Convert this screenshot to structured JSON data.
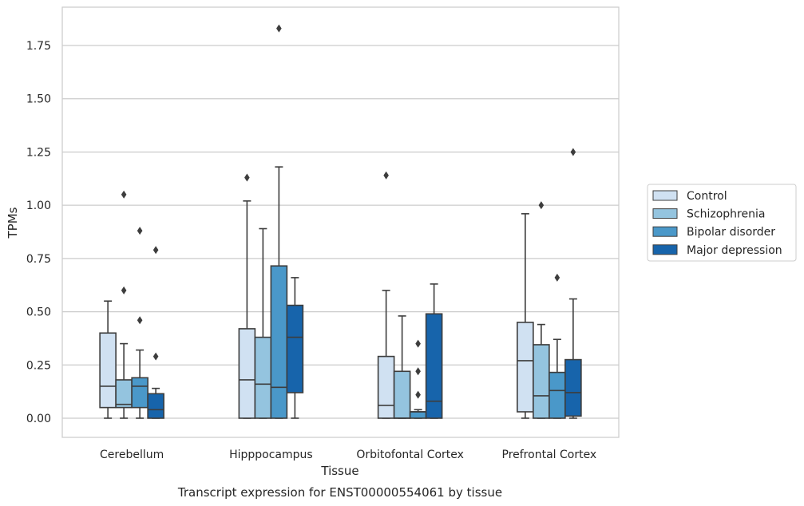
{
  "chart_data": {
    "type": "boxplot",
    "caption": "Transcript expression for ENST00000554061 by tissue",
    "xlabel": "Tissue",
    "ylabel": "TPMs",
    "ylim": [
      -0.09,
      1.93
    ],
    "yticks": [
      0.0,
      0.25,
      0.5,
      0.75,
      1.0,
      1.25,
      1.5,
      1.75
    ],
    "ytick_labels": [
      "0.00",
      "0.25",
      "0.50",
      "0.75",
      "1.00",
      "1.25",
      "1.50",
      "1.75"
    ],
    "grid": "horizontal",
    "legend_position": "right",
    "categories": [
      "Cerebellum",
      "Hipppocampus",
      "Orbitofontal Cortex",
      "Prefrontal Cortex"
    ],
    "series": [
      {
        "name": "Control",
        "color": "#d0e1f2",
        "boxes": [
          {
            "whislo": 0.0,
            "q1": 0.05,
            "med": 0.15,
            "q3": 0.4,
            "whishi": 0.55,
            "fliers": []
          },
          {
            "whislo": 0.0,
            "q1": 0.0,
            "med": 0.18,
            "q3": 0.42,
            "whishi": 1.02,
            "fliers": [
              1.13
            ]
          },
          {
            "whislo": 0.0,
            "q1": 0.0,
            "med": 0.06,
            "q3": 0.29,
            "whishi": 0.6,
            "fliers": [
              1.14
            ]
          },
          {
            "whislo": 0.0,
            "q1": 0.03,
            "med": 0.27,
            "q3": 0.45,
            "whishi": 0.96,
            "fliers": []
          }
        ]
      },
      {
        "name": "Schizophrenia",
        "color": "#94c4df",
        "boxes": [
          {
            "whislo": 0.0,
            "q1": 0.05,
            "med": 0.065,
            "q3": 0.18,
            "whishi": 0.35,
            "fliers": [
              0.6,
              1.05
            ]
          },
          {
            "whislo": 0.0,
            "q1": 0.0,
            "med": 0.16,
            "q3": 0.38,
            "whishi": 0.89,
            "fliers": []
          },
          {
            "whislo": 0.0,
            "q1": 0.0,
            "med": 0.0,
            "q3": 0.22,
            "whishi": 0.48,
            "fliers": []
          },
          {
            "whislo": 0.0,
            "q1": 0.0,
            "med": 0.105,
            "q3": 0.345,
            "whishi": 0.44,
            "fliers": [
              1.0
            ]
          }
        ]
      },
      {
        "name": "Bipolar disorder",
        "color": "#4a98c9",
        "boxes": [
          {
            "whislo": 0.0,
            "q1": 0.05,
            "med": 0.15,
            "q3": 0.19,
            "whishi": 0.32,
            "fliers": [
              0.46,
              0.88
            ]
          },
          {
            "whislo": 0.0,
            "q1": 0.0,
            "med": 0.145,
            "q3": 0.715,
            "whishi": 1.18,
            "fliers": [
              1.83
            ]
          },
          {
            "whislo": 0.0,
            "q1": 0.0,
            "med": 0.03,
            "q3": 0.03,
            "whishi": 0.04,
            "fliers": [
              0.11,
              0.22,
              0.35
            ]
          },
          {
            "whislo": 0.0,
            "q1": 0.0,
            "med": 0.13,
            "q3": 0.215,
            "whishi": 0.37,
            "fliers": [
              0.66
            ]
          }
        ]
      },
      {
        "name": "Major depression",
        "color": "#1764ab",
        "boxes": [
          {
            "whislo": 0.0,
            "q1": 0.0,
            "med": 0.04,
            "q3": 0.115,
            "whishi": 0.14,
            "fliers": [
              0.29,
              0.79
            ]
          },
          {
            "whislo": 0.0,
            "q1": 0.12,
            "med": 0.38,
            "q3": 0.53,
            "whishi": 0.66,
            "fliers": []
          },
          {
            "whislo": 0.0,
            "q1": 0.0,
            "med": 0.08,
            "q3": 0.49,
            "whishi": 0.63,
            "fliers": []
          },
          {
            "whislo": 0.0,
            "q1": 0.01,
            "med": 0.12,
            "q3": 0.275,
            "whishi": 0.56,
            "fliers": [
              1.25
            ]
          }
        ]
      }
    ]
  }
}
